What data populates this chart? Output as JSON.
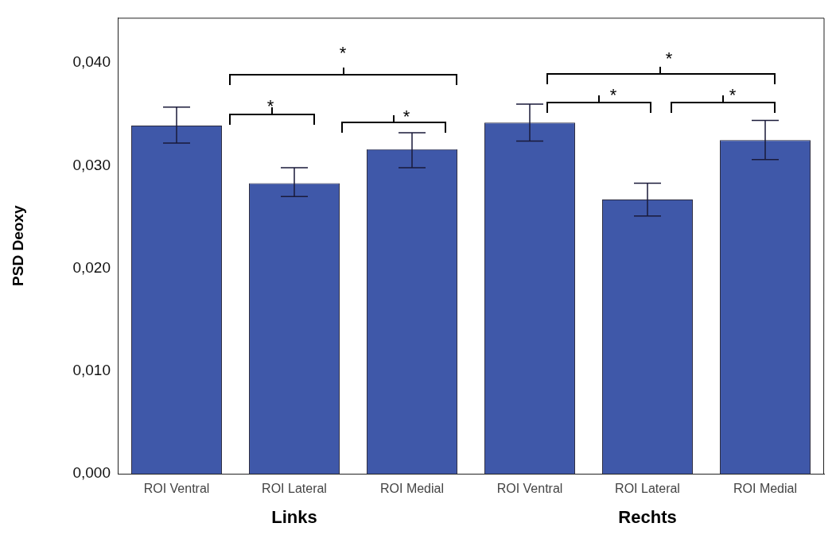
{
  "chart_data": {
    "type": "bar",
    "ylabel": "PSD Deoxy",
    "categories": [
      "ROI Ventral",
      "ROI Lateral",
      "ROI Medial",
      "ROI Ventral",
      "ROI Lateral",
      "ROI Medial"
    ],
    "values": [
      0.0339,
      0.0283,
      0.0316,
      0.0342,
      0.0267,
      0.0325
    ],
    "errors": [
      [
        0.0322,
        0.0357
      ],
      [
        0.027,
        0.0298
      ],
      [
        0.0298,
        0.0332
      ],
      [
        0.0324,
        0.036
      ],
      [
        0.0251,
        0.0283
      ],
      [
        0.0306,
        0.0344
      ]
    ],
    "color": "#3f58a9",
    "ylim": [
      0,
      0.0444
    ],
    "yticks": [
      {
        "value": 0,
        "label": "0,000"
      },
      {
        "value": 0.01,
        "label": "0,010"
      },
      {
        "value": 0.02,
        "label": "0,020"
      },
      {
        "value": 0.03,
        "label": "0,030"
      },
      {
        "value": 0.04,
        "label": "0,040"
      }
    ],
    "grid": false,
    "legend": false,
    "annotations": [
      "Links",
      "Rechts",
      "*",
      "*",
      "*",
      "*",
      "*",
      "*"
    ]
  }
}
